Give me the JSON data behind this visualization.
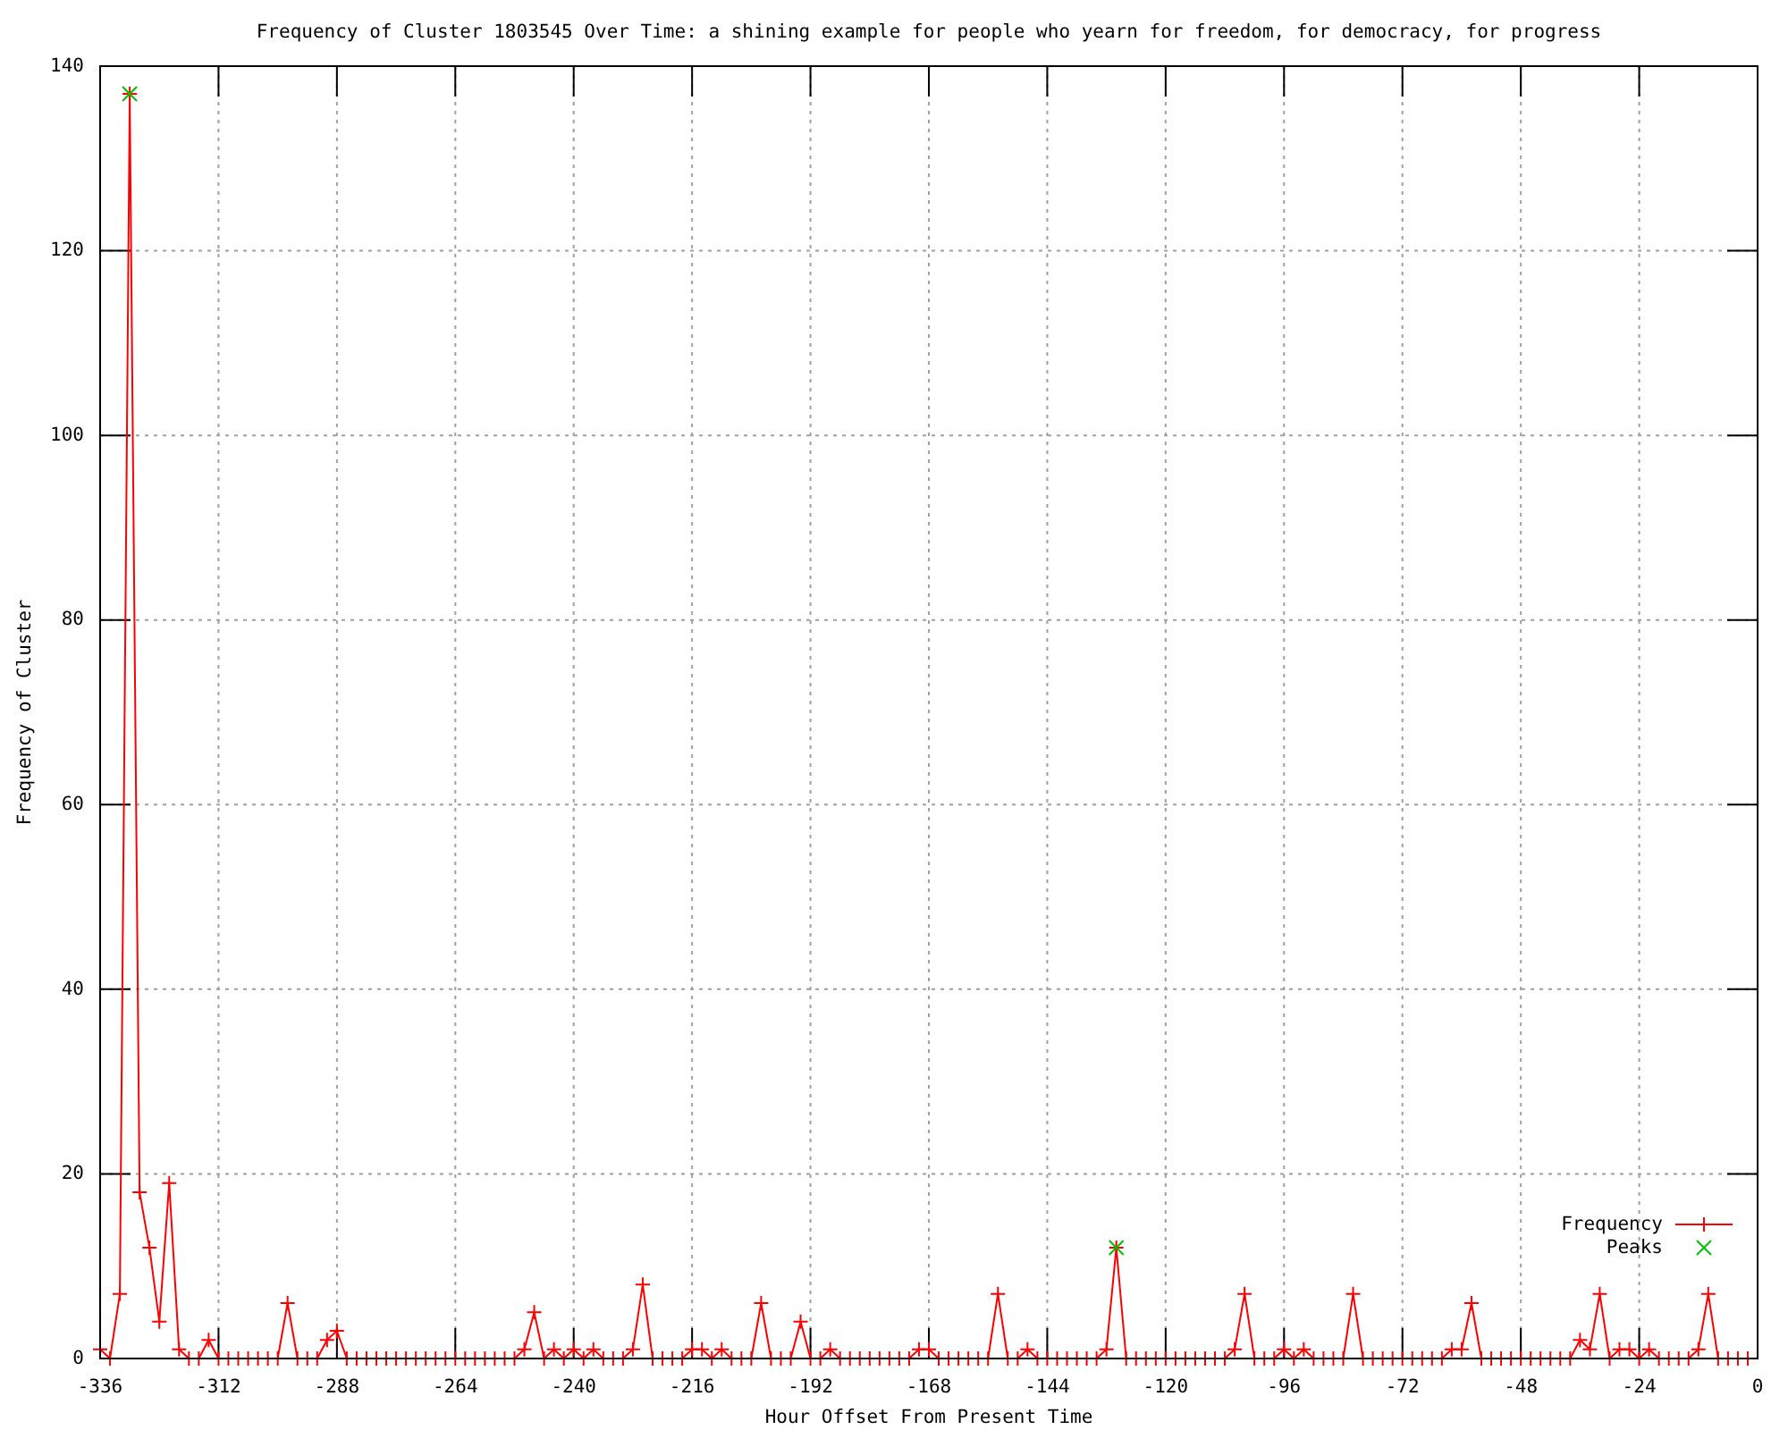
{
  "chart_data": {
    "type": "line",
    "title": "Frequency of Cluster 1803545 Over Time: a shining example for people who yearn for freedom, for democracy, for progress",
    "xlabel": "Hour Offset From Present Time",
    "ylabel": "Frequency of Cluster",
    "xlim": [
      -336,
      0
    ],
    "ylim": [
      0,
      140
    ],
    "xticks": [
      -336,
      -312,
      -288,
      -264,
      -240,
      -216,
      -192,
      -168,
      -144,
      -120,
      -96,
      -72,
      -48,
      -24,
      0
    ],
    "yticks": [
      0,
      20,
      40,
      60,
      80,
      100,
      120,
      140
    ],
    "grid": true,
    "legend": "bottom right",
    "series": [
      {
        "name": "Frequency",
        "color": "#ff0000",
        "marker": "cross",
        "x": [
          -336,
          -334,
          -332,
          -330,
          -328,
          -326,
          -324,
          -322,
          -320,
          -318,
          -316,
          -314,
          -312,
          -310,
          -308,
          -306,
          -304,
          -302,
          -300,
          -298,
          -296,
          -294,
          -292,
          -290,
          -288,
          -286,
          -284,
          -282,
          -280,
          -278,
          -276,
          -274,
          -272,
          -270,
          -268,
          -266,
          -264,
          -262,
          -260,
          -258,
          -256,
          -254,
          -252,
          -250,
          -248,
          -246,
          -244,
          -242,
          -240,
          -238,
          -236,
          -234,
          -232,
          -230,
          -228,
          -226,
          -224,
          -222,
          -220,
          -218,
          -216,
          -214,
          -212,
          -210,
          -208,
          -206,
          -204,
          -202,
          -200,
          -198,
          -196,
          -194,
          -192,
          -190,
          -188,
          -186,
          -184,
          -182,
          -180,
          -178,
          -176,
          -174,
          -172,
          -170,
          -168,
          -166,
          -164,
          -162,
          -160,
          -158,
          -156,
          -154,
          -152,
          -150,
          -148,
          -146,
          -144,
          -142,
          -140,
          -138,
          -136,
          -134,
          -132,
          -130,
          -128,
          -126,
          -124,
          -122,
          -120,
          -118,
          -116,
          -114,
          -112,
          -110,
          -108,
          -106,
          -104,
          -102,
          -100,
          -98,
          -96,
          -94,
          -92,
          -90,
          -88,
          -86,
          -84,
          -82,
          -80,
          -78,
          -76,
          -74,
          -72,
          -70,
          -68,
          -66,
          -64,
          -62,
          -60,
          -58,
          -56,
          -54,
          -52,
          -50,
          -48,
          -46,
          -44,
          -42,
          -40,
          -38,
          -36,
          -34,
          -32,
          -30,
          -28,
          -26,
          -24,
          -22,
          -20,
          -18,
          -16,
          -14,
          -12,
          -10,
          -8,
          -6,
          -4,
          -2
        ],
        "values": [
          1,
          0,
          7,
          137,
          18,
          12,
          4,
          19,
          1,
          0,
          0,
          2,
          0,
          0,
          0,
          0,
          0,
          0,
          0,
          6,
          0,
          0,
          0,
          2,
          3,
          0,
          0,
          0,
          0,
          0,
          0,
          0,
          0,
          0,
          0,
          0,
          0,
          0,
          0,
          0,
          0,
          0,
          0,
          1,
          5,
          0,
          1,
          0,
          1,
          0,
          1,
          0,
          0,
          0,
          1,
          8,
          0,
          0,
          0,
          0,
          1,
          1,
          0,
          1,
          0,
          0,
          0,
          6,
          0,
          0,
          0,
          4,
          0,
          0,
          1,
          0,
          0,
          0,
          0,
          0,
          0,
          0,
          0,
          1,
          1,
          0,
          0,
          0,
          0,
          0,
          0,
          7,
          0,
          0,
          1,
          0,
          0,
          0,
          0,
          0,
          0,
          0,
          1,
          12,
          0,
          0,
          0,
          0,
          0,
          0,
          0,
          0,
          0,
          0,
          0,
          1,
          7,
          0,
          0,
          0,
          1,
          0,
          1,
          0,
          0,
          0,
          0,
          7,
          0,
          0,
          0,
          0,
          0,
          0,
          0,
          0,
          0,
          1,
          1,
          6,
          0,
          0,
          0,
          0,
          0,
          0,
          0,
          0,
          0,
          0,
          2,
          1,
          7,
          0,
          1,
          1,
          0,
          1,
          0,
          0,
          0,
          0,
          1,
          7,
          0,
          0,
          0,
          0
        ]
      },
      {
        "name": "Peaks",
        "type": "scatter",
        "color": "#00c000",
        "marker": "cross",
        "x": [
          -330,
          -130
        ],
        "values": [
          137,
          12
        ]
      }
    ]
  }
}
